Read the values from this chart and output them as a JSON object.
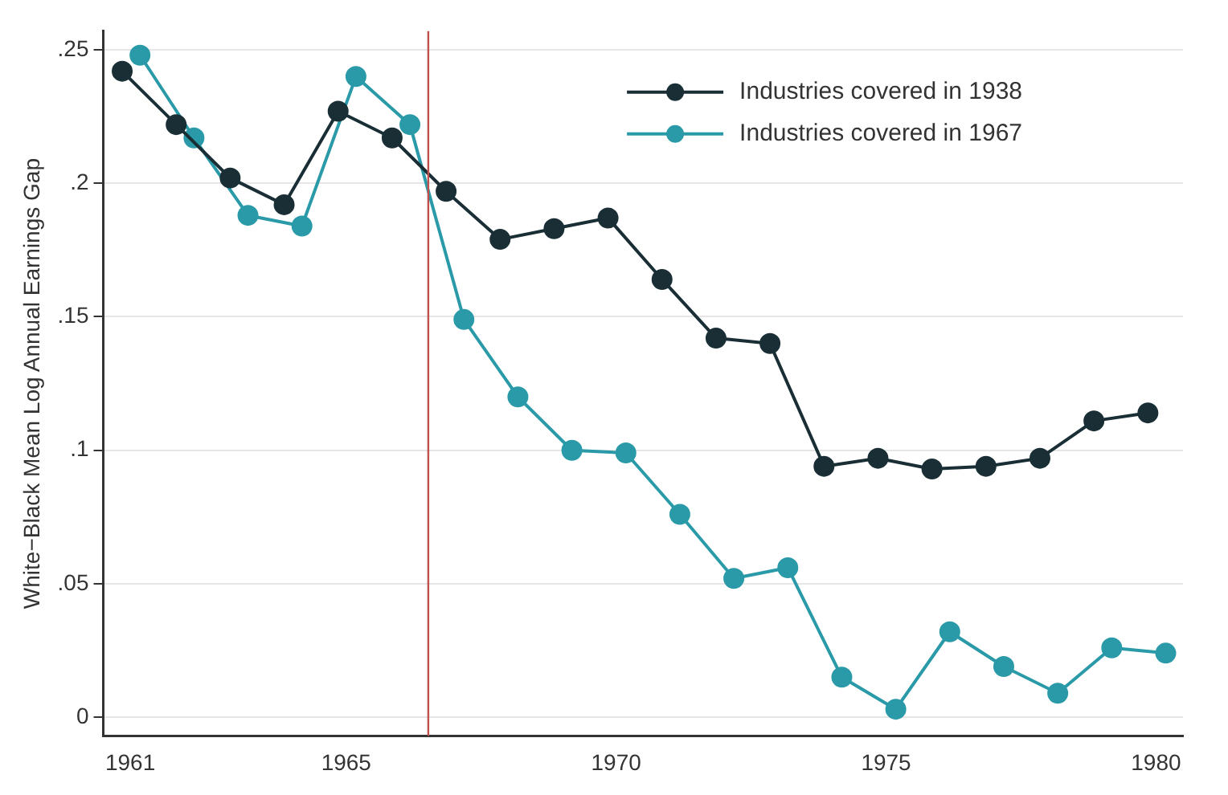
{
  "chart_data": {
    "type": "line",
    "ylabel": "White−Black Mean Log Annual Earnings Gap",
    "xlim": [
      1960.5,
      1980.5
    ],
    "xticks": [
      1961,
      1965,
      1970,
      1975,
      1980
    ],
    "ylim": [
      -0.007,
      0.257
    ],
    "yticks": [
      {
        "value": 0,
        "label": "0"
      },
      {
        "value": 0.05,
        "label": ".05"
      },
      {
        "value": 0.1,
        "label": ".1"
      },
      {
        "value": 0.15,
        "label": ".15"
      },
      {
        "value": 0.2,
        "label": ".2"
      },
      {
        "value": 0.25,
        "label": ".25"
      }
    ],
    "grid": "y",
    "legend": "top right",
    "marker": "circle",
    "line_style": "solid",
    "ref_lines": [
      {
        "axis": "x",
        "value": 1966.52,
        "color": "#c0504d"
      }
    ],
    "series": [
      {
        "name": "Industries covered in 1938",
        "color": "#1a2e35",
        "x": [
          1960.85,
          1961.85,
          1962.85,
          1963.85,
          1964.85,
          1965.85,
          1966.85,
          1967.85,
          1968.85,
          1969.85,
          1970.85,
          1971.85,
          1972.85,
          1973.85,
          1974.85,
          1975.85,
          1976.85,
          1977.85,
          1978.85,
          1979.85
        ],
        "values": [
          0.242,
          0.222,
          0.202,
          0.192,
          0.227,
          0.217,
          0.197,
          0.179,
          0.183,
          0.187,
          0.164,
          0.142,
          0.14,
          0.094,
          0.097,
          0.093,
          0.094,
          0.097,
          0.111,
          0.114
        ]
      },
      {
        "name": "Industries covered in 1967",
        "color": "#2a9aa8",
        "x": [
          1961.18,
          1962.18,
          1963.18,
          1964.18,
          1965.18,
          1966.18,
          1967.18,
          1968.18,
          1969.18,
          1970.18,
          1971.18,
          1972.18,
          1973.18,
          1974.18,
          1975.18,
          1976.18,
          1977.18,
          1978.18,
          1979.18,
          1980.18
        ],
        "values": [
          0.248,
          0.217,
          0.188,
          0.184,
          0.24,
          0.222,
          0.149,
          0.12,
          0.1,
          0.099,
          0.076,
          0.052,
          0.056,
          0.015,
          0.003,
          0.032,
          0.019,
          0.009,
          0.026,
          0.024
        ]
      }
    ]
  }
}
